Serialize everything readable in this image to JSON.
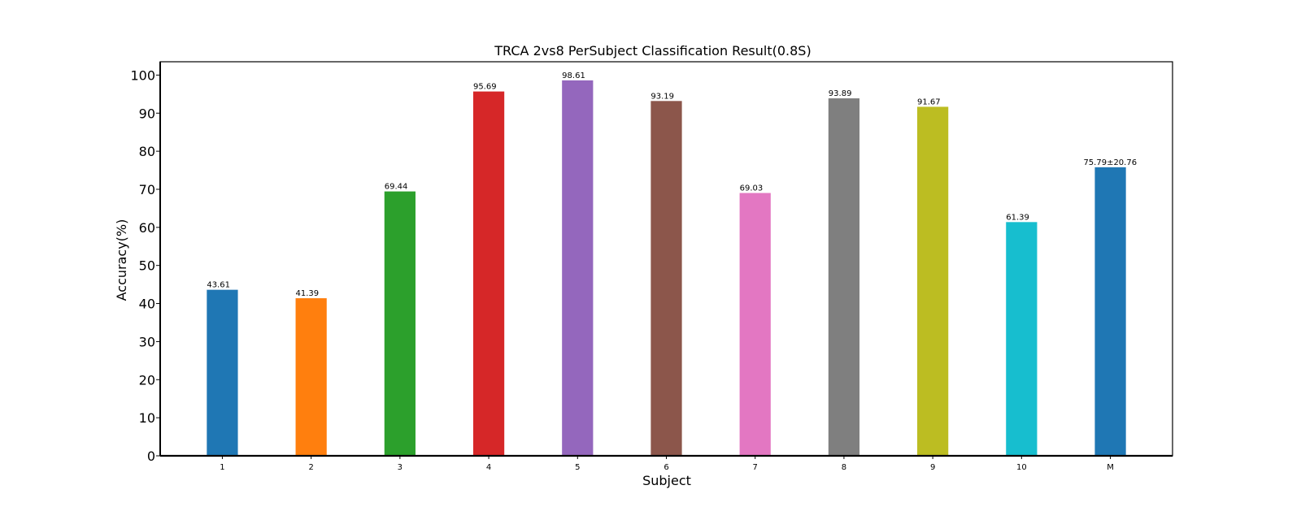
{
  "chart_data": {
    "type": "bar",
    "title": "TRCA 2vs8 PerSubject Classification Result(0.8S)",
    "xlabel": "Subject",
    "ylabel": "Accuracy(%)",
    "ylim": [
      0,
      103.5
    ],
    "yticks": [
      "0",
      "10",
      "20",
      "30",
      "40",
      "50",
      "60",
      "70",
      "80",
      "90",
      "100"
    ],
    "grid": false,
    "categories": [
      "1",
      "2",
      "3",
      "4",
      "5",
      "6",
      "7",
      "8",
      "9",
      "10",
      "M"
    ],
    "values": [
      43.61,
      41.39,
      69.44,
      95.69,
      98.61,
      93.19,
      69.03,
      93.89,
      91.67,
      61.39,
      75.79
    ],
    "data_labels": [
      "43.61",
      "41.39",
      "69.44",
      "95.69",
      "98.61",
      "93.19",
      "69.03",
      "93.89",
      "91.67",
      "61.39",
      "75.79±20.76"
    ],
    "colors": [
      "#1f77b4",
      "#ff7f0e",
      "#2ca02c",
      "#d62728",
      "#9467bd",
      "#8c564b",
      "#e377c2",
      "#7f7f7f",
      "#bcbd22",
      "#17becf",
      "#1f77b4"
    ],
    "label_colors": [
      "#000000",
      "#000000",
      "#000000",
      "#000000",
      "#000000",
      "#000000",
      "#000000",
      "#000000",
      "#000000",
      "#000000",
      "#ff0000"
    ]
  }
}
